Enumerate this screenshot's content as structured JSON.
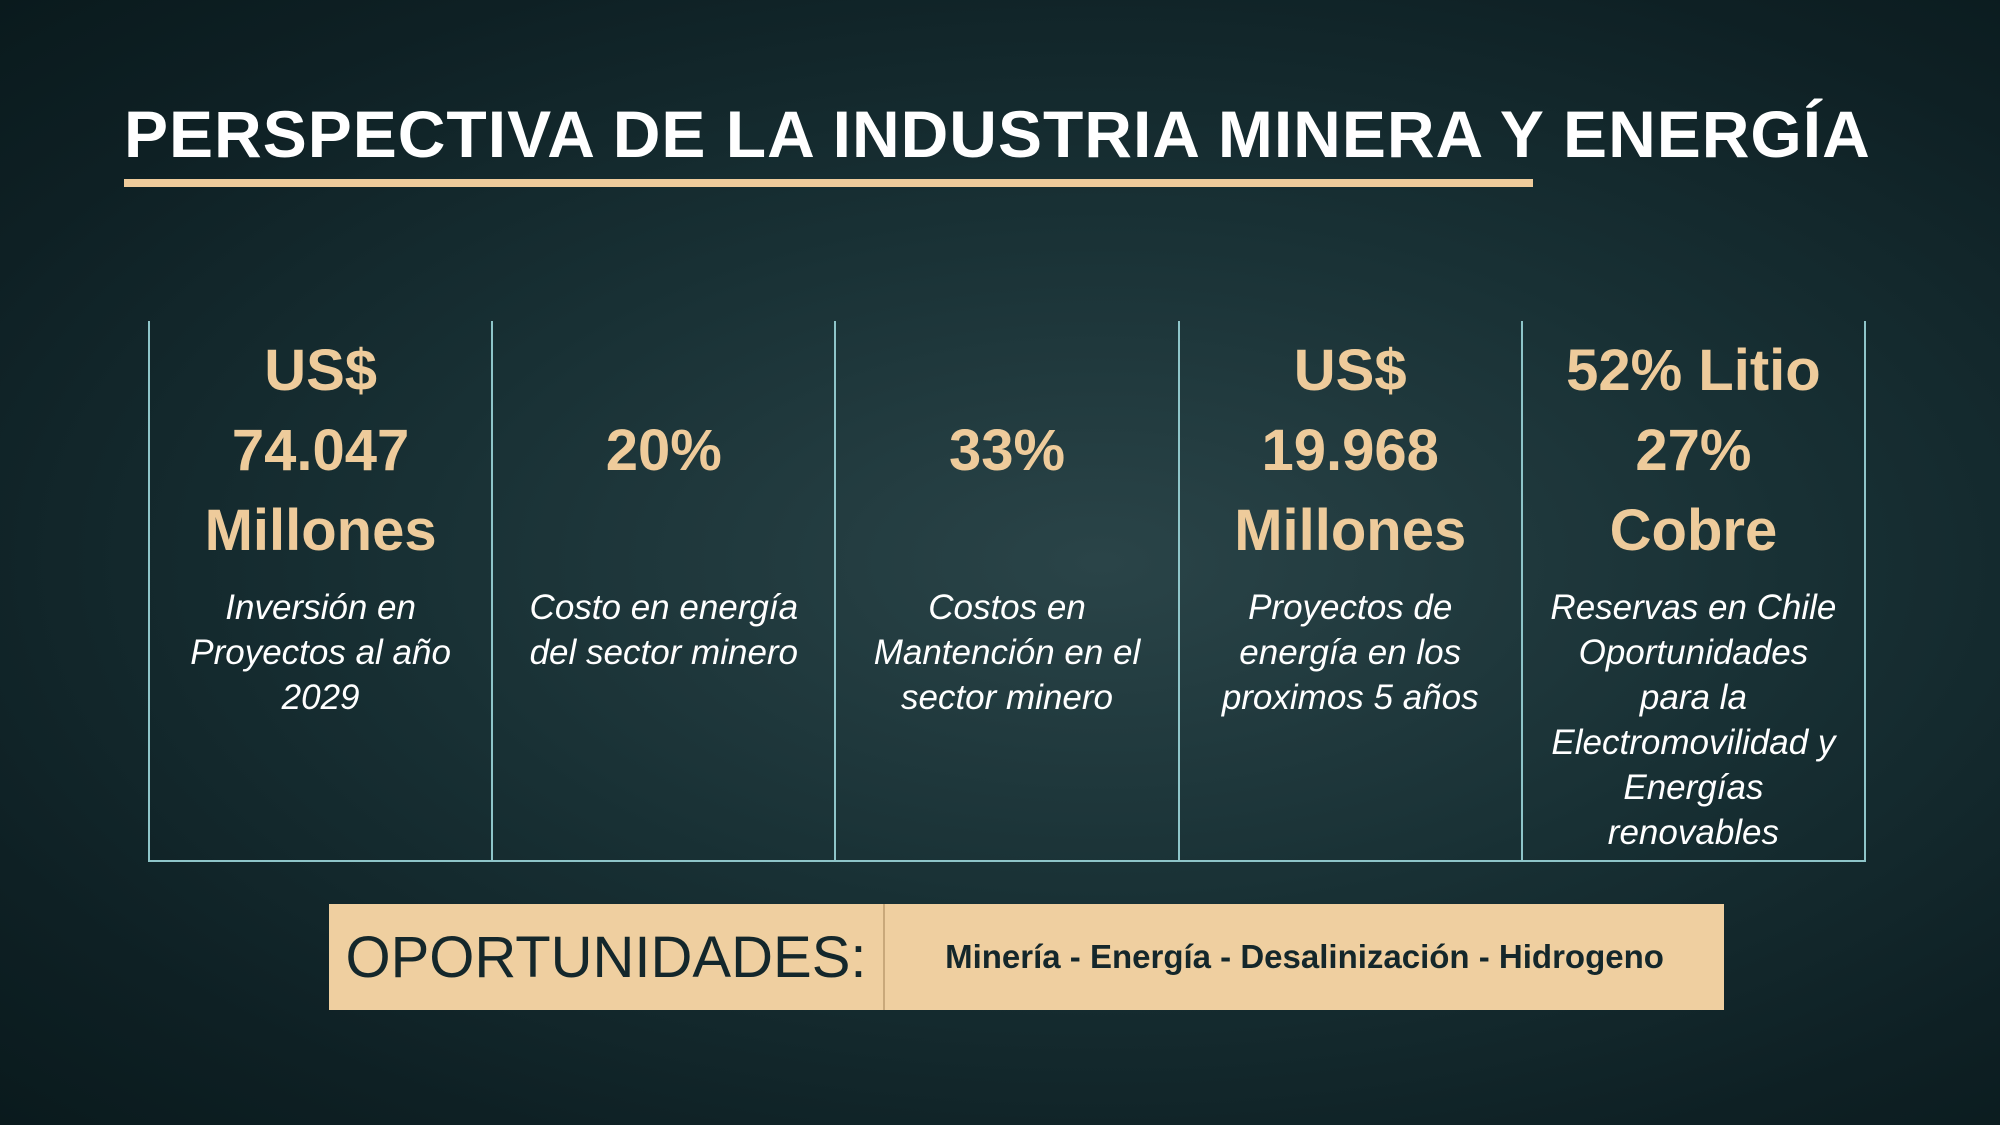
{
  "header": {
    "title": "PERSPECTIVA DE LA INDUSTRIA MINERA Y ENERGÍA"
  },
  "stats": [
    {
      "value": [
        "US$",
        "74.047",
        "Millones"
      ],
      "description": [
        "Inversión en",
        "Proyectos al año",
        "2029"
      ]
    },
    {
      "value": [
        "20%"
      ],
      "description": [
        "Costo en energía",
        "del sector minero"
      ]
    },
    {
      "value": [
        "33%"
      ],
      "description": [
        "Costos en",
        "Mantención en el",
        "sector minero"
      ]
    },
    {
      "value": [
        "US$",
        "19.968",
        "Millones"
      ],
      "description": [
        "Proyectos de",
        "energía en los",
        "proximos 5 años"
      ]
    },
    {
      "value": [
        "52% Litio",
        "27%",
        "Cobre"
      ],
      "description": [
        "Reservas en Chile",
        "Oportunidades",
        "para la",
        "Electromovilidad y",
        "Energías",
        "renovables"
      ]
    }
  ],
  "opportunities": {
    "label": "OPORTUNIDADES:",
    "items": "Minería - Energía - Desalinización - Hidrogeno"
  }
}
